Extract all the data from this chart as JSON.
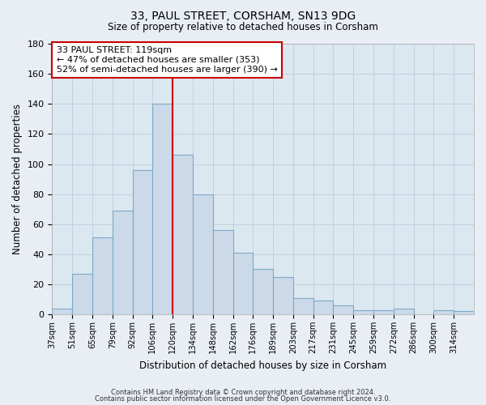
{
  "title": "33, PAUL STREET, CORSHAM, SN13 9DG",
  "subtitle": "Size of property relative to detached houses in Corsham",
  "xlabel": "Distribution of detached houses by size in Corsham",
  "ylabel": "Number of detached properties",
  "bar_labels": [
    "37sqm",
    "51sqm",
    "65sqm",
    "79sqm",
    "92sqm",
    "106sqm",
    "120sqm",
    "134sqm",
    "148sqm",
    "162sqm",
    "176sqm",
    "189sqm",
    "203sqm",
    "217sqm",
    "231sqm",
    "245sqm",
    "259sqm",
    "272sqm",
    "286sqm",
    "300sqm",
    "314sqm"
  ],
  "bar_values": [
    4,
    27,
    51,
    69,
    96,
    140,
    106,
    80,
    56,
    41,
    30,
    25,
    11,
    9,
    6,
    3,
    3,
    4,
    0,
    3,
    2
  ],
  "bar_color": "#ccd9e8",
  "bar_edge_color": "#7aaac8",
  "vline_x": 6.0,
  "vline_color": "#cc0000",
  "annotation_title": "33 PAUL STREET: 119sqm",
  "annotation_line1": "← 47% of detached houses are smaller (353)",
  "annotation_line2": "52% of semi-detached houses are larger (390) →",
  "annotation_box_color": "#ffffff",
  "annotation_box_edge": "#cc0000",
  "ylim": [
    0,
    180
  ],
  "yticks": [
    0,
    20,
    40,
    60,
    80,
    100,
    120,
    140,
    160,
    180
  ],
  "footer1": "Contains HM Land Registry data © Crown copyright and database right 2024.",
  "footer2": "Contains public sector information licensed under the Open Government Licence v3.0.",
  "bg_color": "#e8eef4",
  "plot_bg_color": "#dce8f0"
}
